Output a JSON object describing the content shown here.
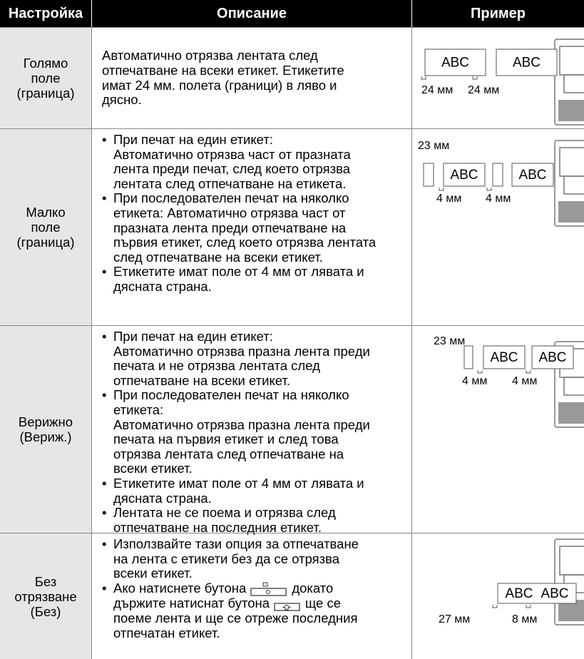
{
  "header": [
    "Настройка",
    "Описание",
    "Пример"
  ],
  "rows": [
    {
      "setting": [
        "Голямо",
        "поле",
        "(граница)"
      ],
      "description": {
        "lines": [
          "Автоматично отрязва лентата след",
          "отпечатване на всеки етикет. Етикетите",
          "имат 24 мм. полета (граници) в ляво и",
          "дясно."
        ]
      },
      "example": {
        "boxes": [
          "ABC",
          "ABC"
        ],
        "margins": [
          "24 мм",
          "24 мм"
        ]
      }
    },
    {
      "setting": [
        "Малко",
        "поле",
        "(граница)"
      ],
      "description": {
        "bullets": [
          [
            "При печат на един етикет:",
            "Автоматично отрязва част от празната",
            "лента преди печат, след което отрязва",
            "лентата след отпечатване на етикета."
          ],
          [
            "При последователен печат на няколко",
            "етикета: Автоматично отрязва част от",
            "празната лента преди отпечатване на",
            "първия етикет, след което отрязва лентата",
            "след отпечатване на всеки етикет."
          ],
          [
            "Етикетите имат поле от 4 мм от лявата и",
            "дясната страна."
          ]
        ]
      },
      "example": {
        "top": "23 мм",
        "boxes": [
          "ABC",
          "ABC"
        ],
        "margins": [
          "4 мм",
          "4 мм"
        ]
      }
    },
    {
      "setting": [
        "Верижно",
        "(Вериж.)"
      ],
      "description": {
        "bullets": [
          [
            "При печат на един етикет:",
            "Автоматично отрязва празна лента преди",
            "печата и не отрязва лентата след",
            "отпечатване на всеки етикет."
          ],
          [
            "При последователен печат на няколко",
            "етикета:",
            "Автоматично отрязва празна лента преди",
            "печата на първия етикет и след това",
            "отрязва лентата след отпечатване на",
            "всеки етикет."
          ],
          [
            "Етикетите имат поле от 4 мм от лявата и",
            "дясната страна."
          ],
          [
            "Лентата не се поема и отрязва след",
            "отпечатване на последния етикет."
          ]
        ]
      },
      "example": {
        "top": "23 мм",
        "boxes": [
          "ABC",
          "ABC"
        ],
        "margins": [
          "4 мм",
          "4 мм"
        ]
      }
    },
    {
      "setting": [
        "Без",
        "отрязване",
        "(Без)"
      ],
      "description": {
        "bullets": [
          [
            "Използвайте тази опция за отпечатване",
            "на лента с етикети без да се отрязва",
            "всеки етикет."
          ],
          [
            [
              "Ако натиснете бутона",
              "докато"
            ],
            [
              "държите натиснат бутона",
              "ще се"
            ],
            "поеме лента и ще се отреже последния",
            "отпечатан етикет."
          ]
        ]
      },
      "example": {
        "boxes": [
          "ABC",
          "ABC"
        ],
        "margins": [
          "27 мм",
          "8 мм"
        ]
      }
    }
  ]
}
